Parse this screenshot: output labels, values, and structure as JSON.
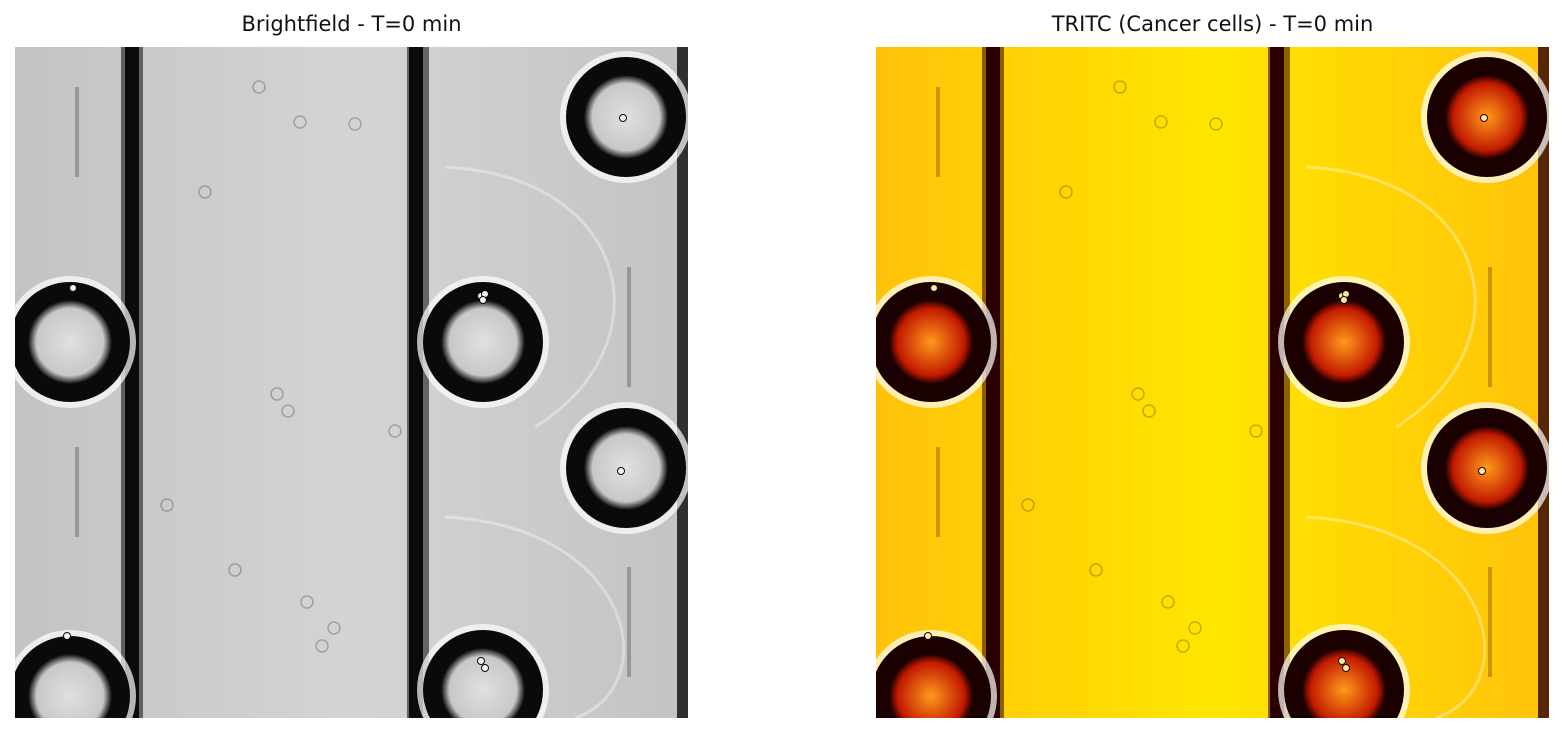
{
  "panels": [
    {
      "title": "Brightfield - T=0 min",
      "colormap": "gray",
      "colors": {
        "background": "#c3c3c3",
        "background_light": "#d4d4d4",
        "channel_wall": "#0b0b0b",
        "ring_dark": "#0a0a0a",
        "ring_glow": "#ffffff",
        "well_interior": "#c8c8c8",
        "well_center": "#e0e0e0",
        "cell": "#f2f2f2"
      }
    },
    {
      "title": "TRITC (Cancer cells) - T=0 min",
      "colormap": "hot",
      "colors": {
        "background": "#ffc20a",
        "background_light": "#ffe600",
        "channel_wall": "#2a0000",
        "ring_dark": "#1a0000",
        "ring_glow": "#ffffff",
        "well_interior": "#c21a00",
        "well_center": "#ff9a1a",
        "cell": "#ffe9a0"
      }
    }
  ]
}
